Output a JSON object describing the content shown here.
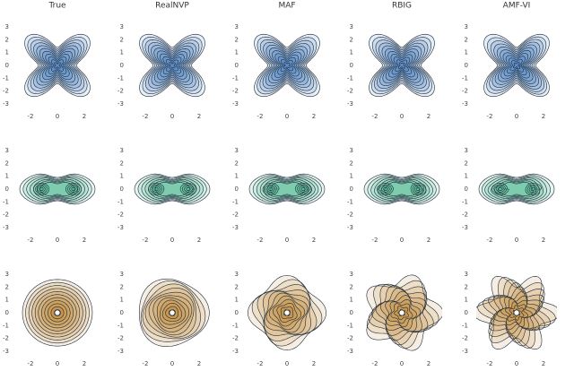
{
  "chart_data": {
    "type": "contour",
    "columns": [
      "True",
      "RealNVP",
      "MAF",
      "RBIG",
      "AMF-VI"
    ],
    "rows": [
      {
        "color": "#2a6fb5"
      },
      {
        "color": "#2bab7a"
      },
      {
        "color": "#b5700f"
      }
    ],
    "xlim": [
      -3,
      3
    ],
    "ylim": [
      -3,
      3
    ],
    "xticks": [
      -2,
      0,
      2
    ],
    "yticks": [
      -3,
      -2,
      -1,
      0,
      1,
      2,
      3
    ]
  }
}
